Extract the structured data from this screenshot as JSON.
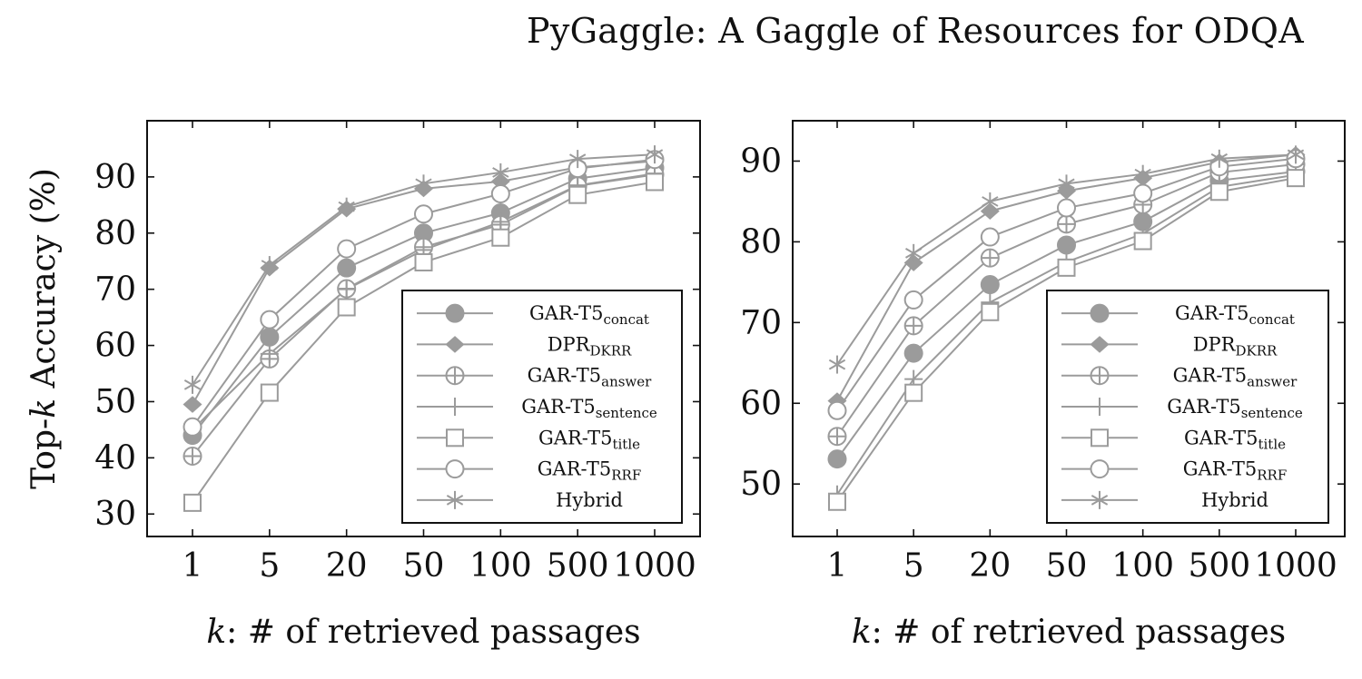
{
  "header": {
    "title": "PyGaggle: A Gaggle of Resources for ODQA"
  },
  "style": {
    "series_color": "#9b9b9b",
    "frame_color": "#111111"
  },
  "chart_data": [
    {
      "type": "line",
      "title": "",
      "xlabel_var": "k",
      "xlabel_rest": ": # of retrieved passages",
      "ylabel_pre": "Top-",
      "ylabel_var": "k",
      "ylabel_post": " Accuracy (%)",
      "x": [
        "1",
        "5",
        "20",
        "50",
        "100",
        "500",
        "1000"
      ],
      "ylim": [
        26,
        100
      ],
      "yticks": [
        30,
        40,
        50,
        60,
        70,
        80,
        90
      ],
      "legend": "lower-right",
      "grid": false,
      "series": [
        {
          "name": "GAR-T5",
          "sub": "concat",
          "marker": "filled-circle",
          "values": [
            44,
            61.5,
            73.8,
            80,
            83.6,
            89.7,
            91.6
          ]
        },
        {
          "name": "DPR",
          "sub": "DKRR",
          "marker": "diamond",
          "values": [
            49.5,
            73.8,
            84.3,
            87.9,
            89.2,
            91.7,
            92.8
          ]
        },
        {
          "name": "GAR-T5",
          "sub": "answer",
          "marker": "circle-plus",
          "values": [
            40.3,
            57.6,
            70.1,
            77.5,
            81.5,
            88.4,
            90.4
          ]
        },
        {
          "name": "GAR-T5",
          "sub": "sentence",
          "marker": "plus",
          "values": [
            45,
            58.5,
            70,
            77,
            82,
            88.5,
            90.6
          ]
        },
        {
          "name": "GAR-T5",
          "sub": "title",
          "marker": "square",
          "values": [
            32,
            51.6,
            66.8,
            74.8,
            79.2,
            86.8,
            89.1
          ]
        },
        {
          "name": "GAR-T5",
          "sub": "RRF",
          "marker": "circle",
          "values": [
            45.5,
            64.6,
            77.2,
            83.4,
            87,
            91.5,
            93.1
          ]
        },
        {
          "name": "Hybrid",
          "sub": "",
          "marker": "star",
          "values": [
            53,
            74.3,
            84.7,
            88.8,
            90.8,
            93.2,
            94
          ]
        }
      ]
    },
    {
      "type": "line",
      "title": "",
      "xlabel_var": "k",
      "xlabel_rest": ": # of retrieved passages",
      "x": [
        "1",
        "5",
        "20",
        "50",
        "100",
        "500",
        "1000"
      ],
      "ylim": [
        43.5,
        95
      ],
      "yticks": [
        50,
        60,
        70,
        80,
        90
      ],
      "legend": "lower-right",
      "grid": false,
      "series": [
        {
          "name": "GAR-T5",
          "sub": "concat",
          "marker": "filled-circle",
          "values": [
            53.1,
            66.2,
            74.7,
            79.6,
            82.5,
            87.6,
            88.7
          ]
        },
        {
          "name": "DPR",
          "sub": "DKRR",
          "marker": "diamond",
          "values": [
            60.3,
            77.4,
            83.8,
            86.3,
            87.9,
            89.9,
            90.8
          ]
        },
        {
          "name": "GAR-T5",
          "sub": "answer",
          "marker": "circle-plus",
          "values": [
            55.9,
            69.6,
            78,
            82.2,
            84.6,
            88.6,
            89.6
          ]
        },
        {
          "name": "GAR-T5",
          "sub": "sentence",
          "marker": "plus",
          "values": [
            48.7,
            63,
            72.5,
            77.5,
            81,
            86.8,
            88.3
          ]
        },
        {
          "name": "GAR-T5",
          "sub": "title",
          "marker": "square",
          "values": [
            47.8,
            61.3,
            71.3,
            76.8,
            80.1,
            86.2,
            87.9
          ]
        },
        {
          "name": "GAR-T5",
          "sub": "RRF",
          "marker": "circle",
          "values": [
            59.1,
            72.8,
            80.6,
            84.2,
            86,
            89.3,
            90.3
          ]
        },
        {
          "name": "Hybrid",
          "sub": "",
          "marker": "star",
          "values": [
            64.8,
            78.6,
            85,
            87.2,
            88.4,
            90.3,
            90.8
          ]
        }
      ]
    }
  ]
}
